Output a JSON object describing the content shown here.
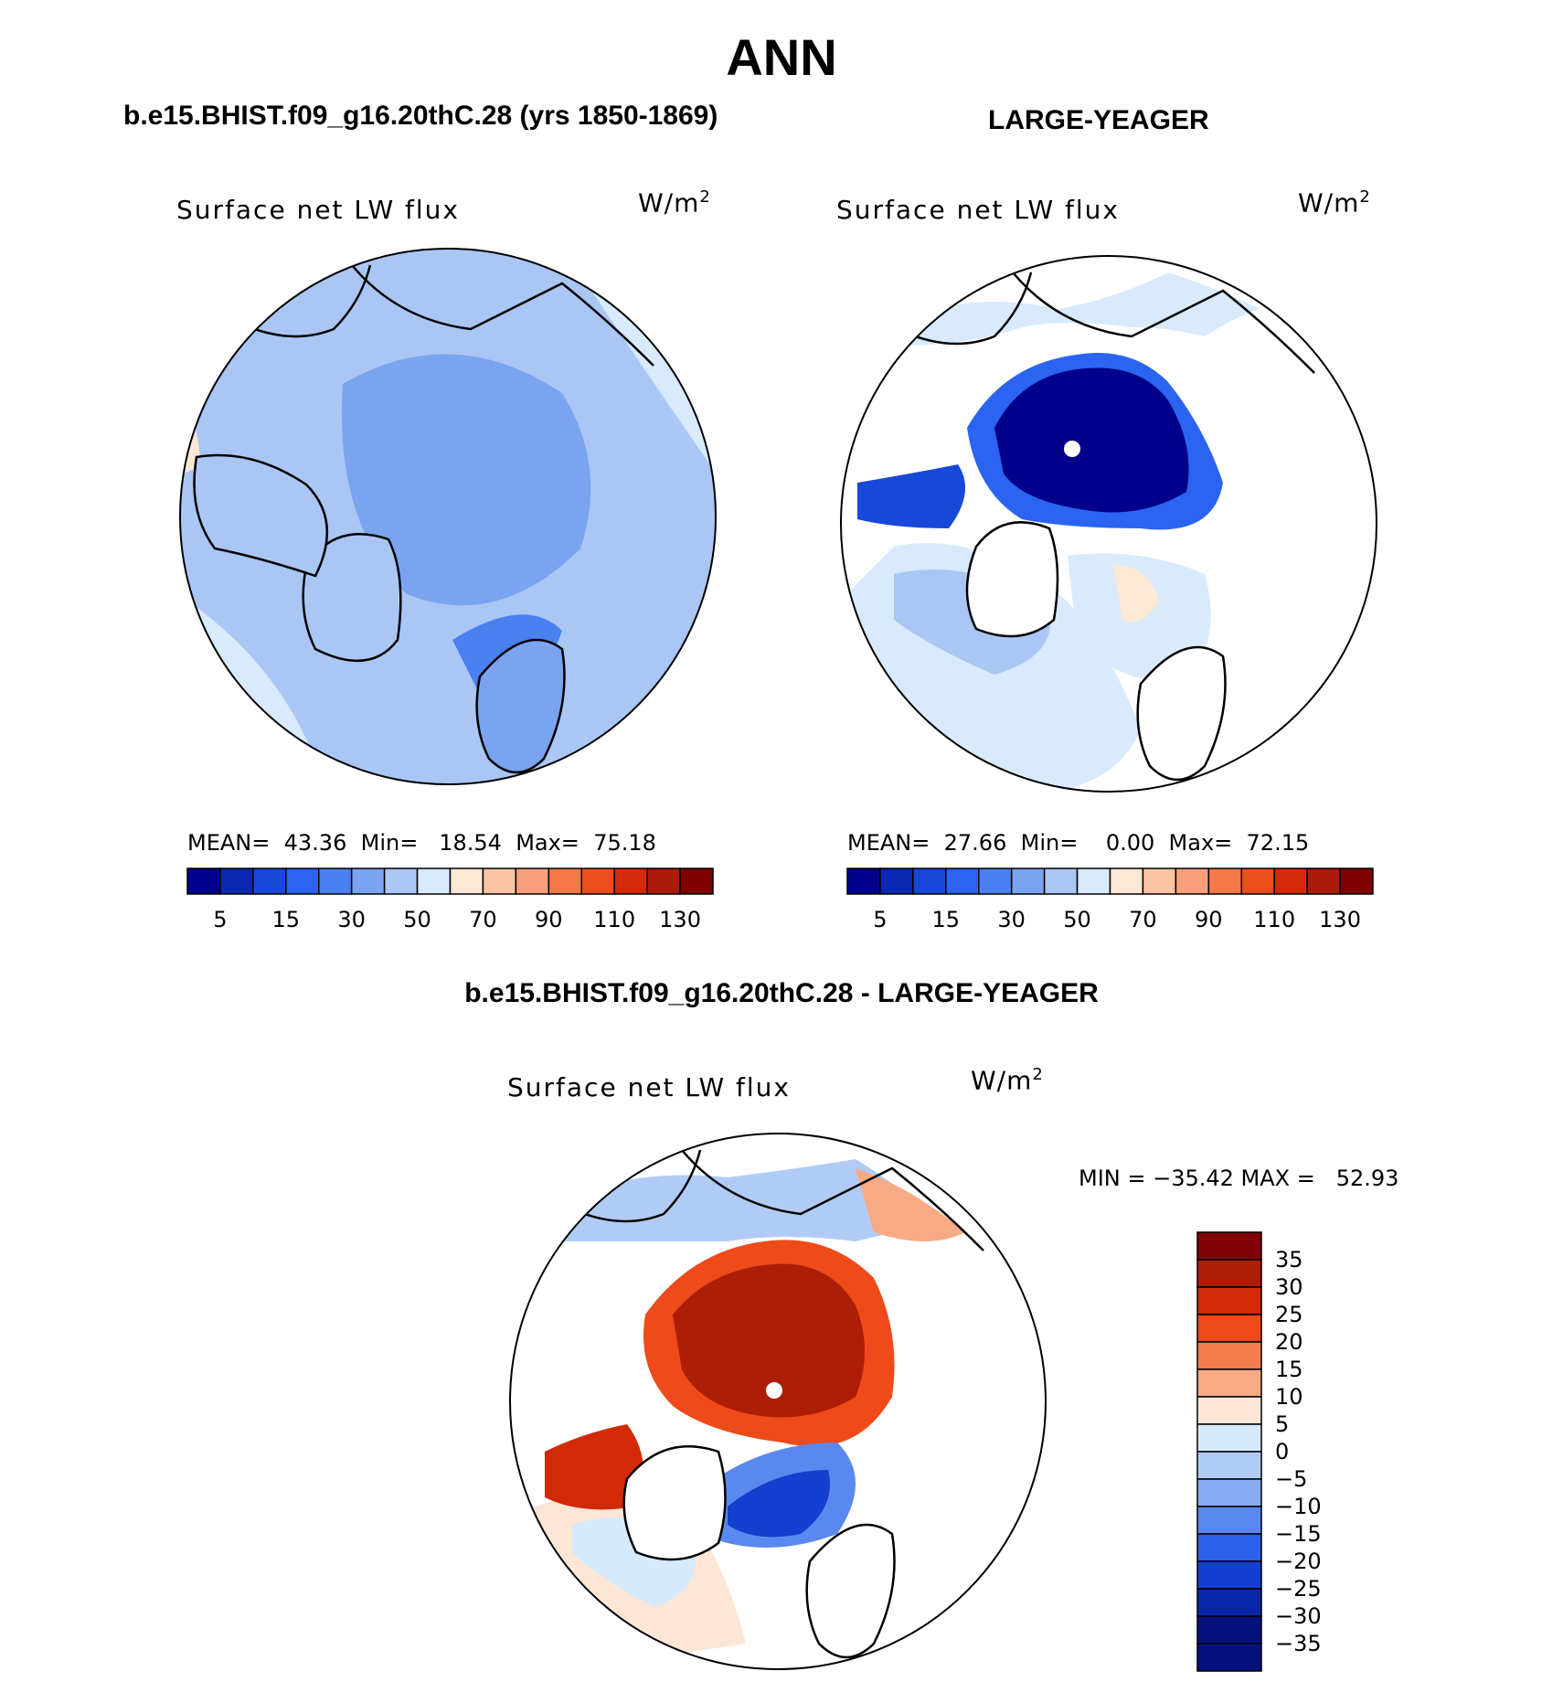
{
  "figure": {
    "title": "ANN",
    "panels": [
      {
        "id": "case",
        "title": "b.e15.BHIST.f09_g16.20thC.28 (yrs 1850-1869)",
        "field": "Surface net LW flux",
        "units_base": "W/m",
        "units_exp": "2",
        "stats": {
          "mean_label": "MEAN=",
          "mean": "43.36",
          "min_label": "Min=",
          "min": "18.54",
          "max_label": "Max=",
          "max": "75.18"
        },
        "colorbar_ticks": [
          "5",
          "15",
          "30",
          "50",
          "70",
          "90",
          "110",
          "130"
        ]
      },
      {
        "id": "obs",
        "title": "LARGE-YEAGER",
        "field": "Surface net LW flux",
        "units_base": "W/m",
        "units_exp": "2",
        "stats": {
          "mean_label": "MEAN=",
          "mean": "27.66",
          "min_label": "Min=",
          "min": "0.00",
          "max_label": "Max=",
          "max": "72.15"
        },
        "colorbar_ticks": [
          "5",
          "15",
          "30",
          "50",
          "70",
          "90",
          "110",
          "130"
        ]
      },
      {
        "id": "diff",
        "title": "b.e15.BHIST.f09_g16.20thC.28 - LARGE-YEAGER",
        "field": "Surface net LW flux",
        "units_base": "W/m",
        "units_exp": "2",
        "minmax": "MIN = −35.42 MAX =   52.93",
        "colorbar_ticks": [
          "35",
          "30",
          "25",
          "20",
          "15",
          "10",
          "5",
          "0",
          "−5",
          "−10",
          "−15",
          "−20",
          "−25",
          "−30",
          "−35"
        ]
      }
    ],
    "colors": {
      "abs_scale": [
        "#00008b",
        "#0a28b0",
        "#1848d8",
        "#2a64f0",
        "#4a80f0",
        "#7aa4f0",
        "#aac6f4",
        "#d8eafc",
        "#fde8d6",
        "#fbc4a4",
        "#f8a07a",
        "#f47848",
        "#ee4e1e",
        "#d42a0a",
        "#ac1a08",
        "#800000"
      ],
      "diff_scale": [
        "#80000a",
        "#ac1e08",
        "#d22a08",
        "#ee4a1a",
        "#f47c4e",
        "#f8aa84",
        "#fde6d6",
        "#d6eafc",
        "#b0ccf6",
        "#88acf2",
        "#5a88ee",
        "#2c60e8",
        "#1440d0",
        "#0a26a8",
        "#06107c"
      ],
      "land": "#ffffff",
      "coast": "#000000"
    }
  }
}
